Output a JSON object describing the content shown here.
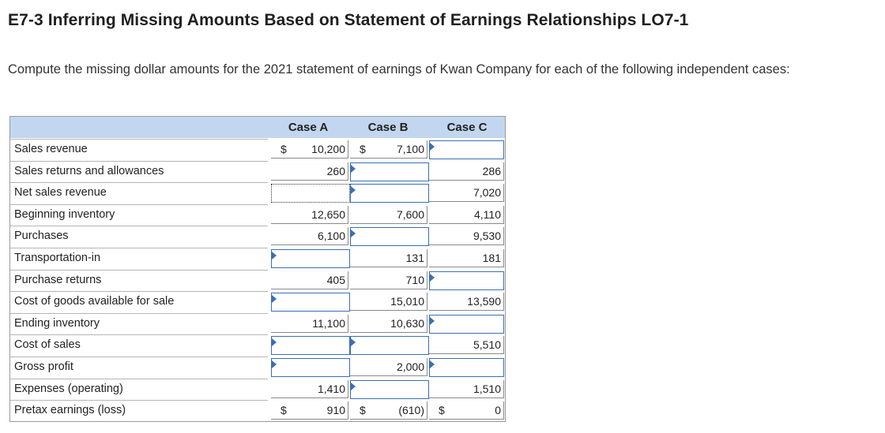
{
  "title": "E7-3 Inferring Missing Amounts Based on Statement of Earnings Relationships LO7-1",
  "intro": "Compute the missing dollar amounts for the 2021 statement of earnings of Kwan Company for each of the following independent cases:",
  "table": {
    "headers": [
      "Case A",
      "Case B",
      "Case C"
    ],
    "dollar_sign": "$",
    "rows": [
      {
        "label": "Sales revenue",
        "a": "10,200",
        "b": "7,100",
        "c": ""
      },
      {
        "label": "Sales returns and allowances",
        "a": "260",
        "b": "",
        "c": "286"
      },
      {
        "label": "Net sales revenue",
        "a": "",
        "b": "",
        "c": "7,020"
      },
      {
        "label": "Beginning inventory",
        "a": "12,650",
        "b": "7,600",
        "c": "4,110"
      },
      {
        "label": "Purchases",
        "a": "6,100",
        "b": "",
        "c": "9,530"
      },
      {
        "label": "Transportation-in",
        "a": "",
        "b": "131",
        "c": "181"
      },
      {
        "label": "Purchase returns",
        "a": "405",
        "b": "710",
        "c": ""
      },
      {
        "label": "Cost of goods available for sale",
        "a": "",
        "b": "15,010",
        "c": "13,590"
      },
      {
        "label": "Ending inventory",
        "a": "11,100",
        "b": "10,630",
        "c": ""
      },
      {
        "label": "Cost of sales",
        "a": "",
        "b": "",
        "c": "5,510"
      },
      {
        "label": "Gross profit",
        "a": "",
        "b": "2,000",
        "c": ""
      },
      {
        "label": "Expenses (operating)",
        "a": "1,410",
        "b": "",
        "c": "1,510"
      },
      {
        "label": "Pretax earnings (loss)",
        "a": "910",
        "b": "(610)",
        "c": "0"
      }
    ]
  }
}
